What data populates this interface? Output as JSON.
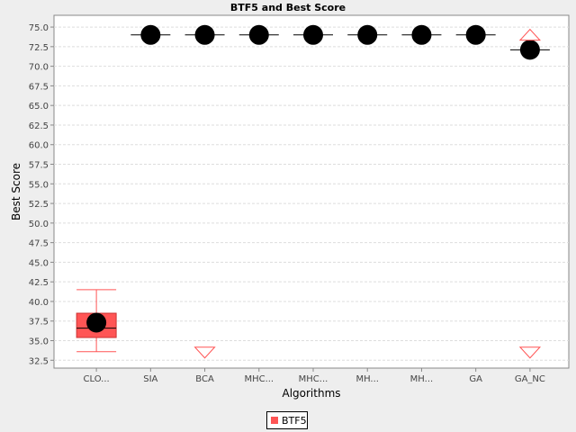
{
  "chart_data": {
    "type": "box",
    "title": "BTF5 and Best Score",
    "xlabel": "Algorithms",
    "ylabel": "Best Score",
    "ylim": [
      31.5,
      76.5
    ],
    "yticks": [
      32.5,
      35.0,
      37.5,
      40.0,
      42.5,
      45.0,
      47.5,
      50.0,
      52.5,
      55.0,
      57.5,
      60.0,
      62.5,
      65.0,
      67.5,
      70.0,
      72.5,
      75.0
    ],
    "grid": true,
    "legend_position": "bottom-center",
    "categories": [
      "CLO...",
      "SIA",
      "BCA",
      "MHC...",
      "MHC...",
      "MH...",
      "MH...",
      "GA",
      "GA_NC"
    ],
    "series": [
      {
        "name": "BTF5",
        "color": "#ff5555",
        "boxes": [
          {
            "q1": 35.4,
            "median": 36.6,
            "q3": 38.5,
            "whisker_low": 33.6,
            "whisker_high": 41.5,
            "mean": 37.3,
            "outlier_above": null,
            "outlier_below": null
          },
          {
            "q1": 74.0,
            "median": 74.0,
            "q3": 74.0,
            "whisker_low": 74.0,
            "whisker_high": 74.0,
            "mean": 74.0,
            "outlier_above": null,
            "outlier_below": null
          },
          {
            "q1": 74.0,
            "median": 74.0,
            "q3": 74.0,
            "whisker_low": 74.0,
            "whisker_high": 74.0,
            "mean": 74.0,
            "outlier_above": null,
            "outlier_below": 33.6
          },
          {
            "q1": 74.0,
            "median": 74.0,
            "q3": 74.0,
            "whisker_low": 74.0,
            "whisker_high": 74.0,
            "mean": 74.0,
            "outlier_above": null,
            "outlier_below": null
          },
          {
            "q1": 74.0,
            "median": 74.0,
            "q3": 74.0,
            "whisker_low": 74.0,
            "whisker_high": 74.0,
            "mean": 74.0,
            "outlier_above": null,
            "outlier_below": null
          },
          {
            "q1": 74.0,
            "median": 74.0,
            "q3": 74.0,
            "whisker_low": 74.0,
            "whisker_high": 74.0,
            "mean": 74.0,
            "outlier_above": null,
            "outlier_below": null
          },
          {
            "q1": 74.0,
            "median": 74.0,
            "q3": 74.0,
            "whisker_low": 74.0,
            "whisker_high": 74.0,
            "mean": 74.0,
            "outlier_above": null,
            "outlier_below": null
          },
          {
            "q1": 74.0,
            "median": 74.0,
            "q3": 74.0,
            "whisker_low": 74.0,
            "whisker_high": 74.0,
            "mean": 74.0,
            "outlier_above": null,
            "outlier_below": null
          },
          {
            "q1": 72.1,
            "median": 72.1,
            "q3": 72.1,
            "whisker_low": 72.1,
            "whisker_high": 72.1,
            "mean": 72.1,
            "outlier_above": 73.9,
            "outlier_below": 33.6
          }
        ]
      }
    ]
  }
}
